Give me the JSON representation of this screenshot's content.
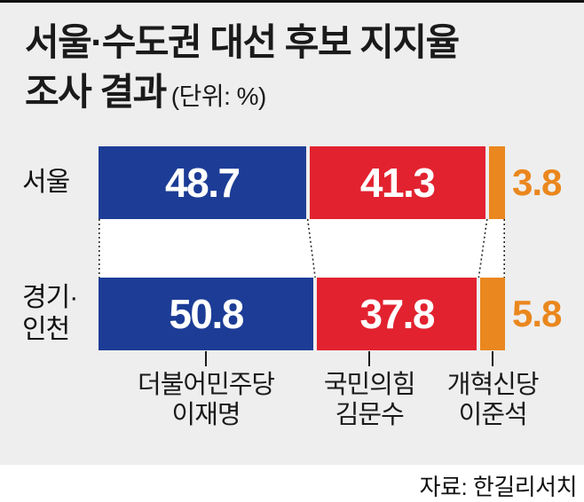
{
  "header": {
    "title_line1": "서울·수도권 대선 후보 지지율",
    "title_line2": "조사 결과",
    "unit_note": "(단위: %)"
  },
  "chart_data": {
    "type": "bar",
    "orientation": "horizontal",
    "stacked": true,
    "unit": "%",
    "grid": false,
    "legend_position": "bottom",
    "categories": [
      "서울",
      "경기·인천"
    ],
    "category_lines": [
      [
        "서울"
      ],
      [
        "경기·",
        "인천"
      ]
    ],
    "series": [
      {
        "key": "minjoo",
        "name": "더불어민주당 이재명",
        "party": "더불어민주당",
        "candidate": "이재명",
        "color": "#1c3c96",
        "values": [
          48.7,
          50.8
        ],
        "value_label_style": "inside-white"
      },
      {
        "key": "ppp",
        "name": "국민의힘 김문수",
        "party": "국민의힘",
        "candidate": "김문수",
        "color": "#e2222f",
        "values": [
          41.3,
          37.8
        ],
        "value_label_style": "inside-white"
      },
      {
        "key": "reform",
        "name": "개혁신당 이준석",
        "party": "개혁신당",
        "candidate": "이준석",
        "color": "#ea871e",
        "values": [
          3.8,
          5.8
        ],
        "value_label_style": "outside-orange"
      }
    ]
  },
  "footer": {
    "source": "자료: 한길리서치"
  },
  "colors": {
    "background": "#ffffff",
    "panel": "#eeeeee",
    "top_rule": "#111111",
    "title_text": "#1a1a1a",
    "bar_value_text": "#ffffff",
    "outside_value_text": "#ea871e",
    "connector": "#2a2a2a",
    "label_text": "#1a1a1a"
  }
}
